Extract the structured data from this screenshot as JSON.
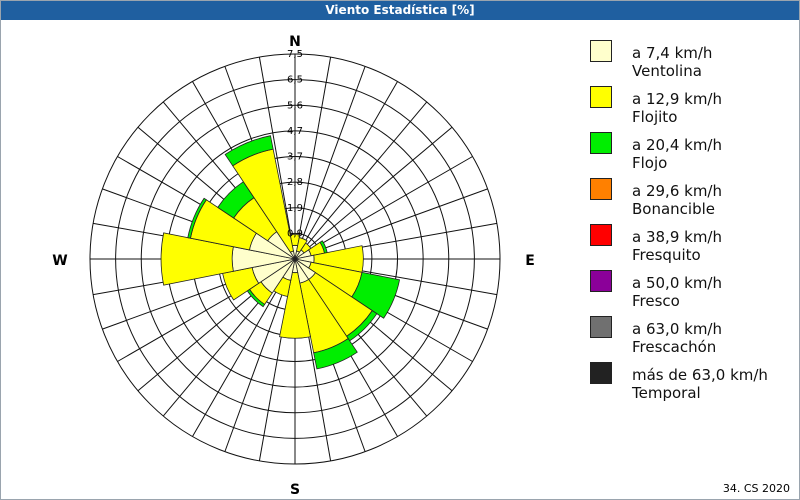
{
  "window": {
    "title": "Viento Estadística [%]"
  },
  "footer": {
    "text": "34. CS 2020"
  },
  "chart_data": {
    "type": "wind-rose",
    "title": "Viento Estadística [%]",
    "directions": [
      "N",
      "NNE",
      "NE",
      "ENE",
      "E",
      "ESE",
      "SE",
      "SSE",
      "S",
      "SSW",
      "SW",
      "WSW",
      "W",
      "WNW",
      "NW",
      "NNW"
    ],
    "direction_angles_deg": [
      0,
      22.5,
      45,
      67.5,
      90,
      112.5,
      135,
      157.5,
      180,
      202.5,
      225,
      247.5,
      270,
      292.5,
      315,
      337.5
    ],
    "compass_labels": {
      "N": "N",
      "E": "E",
      "S": "S",
      "W": "W"
    },
    "radial_ticks": [
      "0,9",
      "1,9",
      "2,8",
      "3,7",
      "4,7",
      "5,6",
      "6,5",
      "7,5"
    ],
    "radial_max": 7.5,
    "series": [
      {
        "name": "a 7,4 km/h",
        "class": "Ventolina",
        "color": "#ffffcc",
        "values": [
          0.5,
          0.3,
          0.4,
          0.6,
          0.7,
          0.6,
          0.9,
          0.9,
          0.5,
          0.8,
          1.5,
          1.6,
          2.3,
          1.7,
          1.2,
          0.3
        ]
      },
      {
        "name": "a 12,9 km/h",
        "class": "Flojito",
        "color": "#ffff00",
        "values": [
          0.4,
          0.5,
          0.3,
          0.5,
          1.8,
          1.9,
          2.5,
          2.6,
          2.4,
          0.6,
          0.5,
          1.1,
          2.6,
          2.2,
          1.5,
          3.8
        ]
      },
      {
        "name": "a 20,4 km/h",
        "class": "Flojo",
        "color": "#00ee00",
        "values": [
          0.0,
          0.0,
          0.0,
          0.1,
          0.0,
          1.4,
          0.2,
          0.6,
          0.0,
          0.0,
          0.1,
          0.0,
          0.0,
          0.1,
          0.7,
          0.5
        ]
      },
      {
        "name": "a 29,6 km/h",
        "class": "Bonancible",
        "color": "#ff8000",
        "values": [
          0,
          0,
          0,
          0,
          0,
          0,
          0,
          0,
          0,
          0,
          0,
          0,
          0,
          0,
          0,
          0
        ]
      },
      {
        "name": "a 38,9 km/h",
        "class": "Fresquito",
        "color": "#ff0000",
        "values": [
          0,
          0,
          0,
          0,
          0,
          0,
          0,
          0,
          0,
          0,
          0,
          0,
          0,
          0,
          0,
          0
        ]
      },
      {
        "name": "a 50,0 km/h",
        "class": "Fresco",
        "color": "#8b0099",
        "values": [
          0,
          0,
          0,
          0,
          0,
          0,
          0,
          0,
          0,
          0,
          0,
          0,
          0,
          0,
          0,
          0
        ]
      },
      {
        "name": "a 63,0 km/h",
        "class": "Frescachón",
        "color": "#707070",
        "values": [
          0,
          0,
          0,
          0,
          0,
          0,
          0,
          0,
          0,
          0,
          0,
          0,
          0,
          0,
          0,
          0
        ]
      },
      {
        "name": "más de 63,0 km/h",
        "class": "Temporal",
        "color": "#222222",
        "values": [
          0,
          0,
          0,
          0,
          0,
          0,
          0,
          0,
          0,
          0,
          0,
          0,
          0,
          0,
          0,
          0
        ]
      }
    ]
  }
}
